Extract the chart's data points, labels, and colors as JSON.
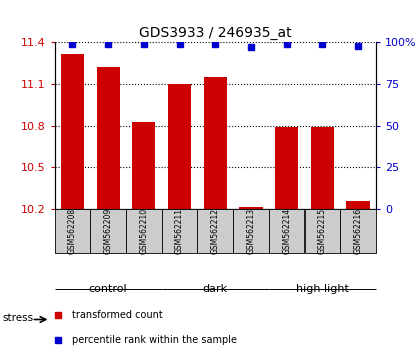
{
  "title": "GDS3933 / 246935_at",
  "samples": [
    "GSM562208",
    "GSM562209",
    "GSM562210",
    "GSM562211",
    "GSM562212",
    "GSM562213",
    "GSM562214",
    "GSM562215",
    "GSM562216"
  ],
  "bar_values": [
    11.32,
    11.22,
    10.83,
    11.1,
    11.15,
    10.21,
    10.79,
    10.79,
    10.26
  ],
  "percentile_values": [
    99,
    99,
    99,
    99,
    99,
    97,
    99,
    99,
    98
  ],
  "groups": [
    {
      "label": "control",
      "start": 0,
      "end": 3,
      "color": "#ccffcc"
    },
    {
      "label": "dark",
      "start": 3,
      "end": 6,
      "color": "#aaffaa"
    },
    {
      "label": "high light",
      "start": 6,
      "end": 9,
      "color": "#44ee44"
    }
  ],
  "ylim_left": [
    10.2,
    11.4
  ],
  "ylim_right": [
    0,
    100
  ],
  "yticks_left": [
    10.2,
    10.5,
    10.8,
    11.1,
    11.4
  ],
  "yticks_right": [
    0,
    25,
    50,
    75,
    100
  ],
  "bar_color": "#cc0000",
  "blue_color": "#0000cc",
  "bar_bottom": 10.2,
  "stress_label": "stress",
  "legend_bar_label": "transformed count",
  "legend_pct_label": "percentile rank within the sample",
  "gray_box_color": "#cccccc",
  "group_border_color": "#000000"
}
